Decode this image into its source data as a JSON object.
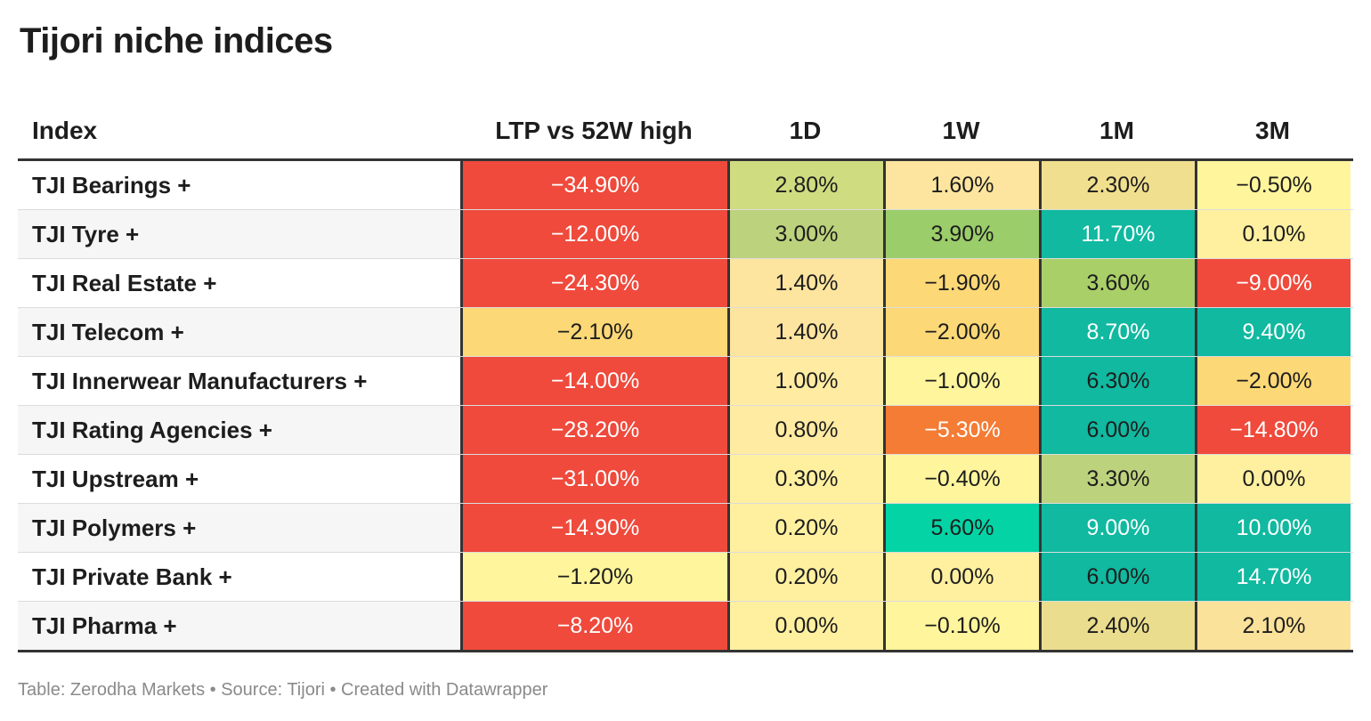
{
  "title": "Tijori niche indices",
  "footer": "Table: Zerodha Markets • Source: Tijori • Created with Datawrapper",
  "colors": {
    "strong_red": "#ef4a3c",
    "orange": "#f47c35",
    "amber": "#fdd876",
    "light_amber": "#fde59f",
    "pale_yellow": "#fff59c",
    "olive_light": "#d0dc80",
    "olive": "#bdd27c",
    "light_green": "#a9cf68",
    "teal": "#10b9a0",
    "green_teal": "#04d4a5"
  },
  "chart_data": {
    "type": "table",
    "columns": [
      "Index",
      "LTP vs 52W high",
      "1D",
      "1W",
      "1M",
      "3M"
    ],
    "rows": [
      {
        "name": "TJI Bearings +",
        "cells": [
          {
            "text": "−34.90%",
            "value": -34.9,
            "bg": "#ef4a3c",
            "fg": "#ffffff"
          },
          {
            "text": "2.80%",
            "value": 2.8,
            "bg": "#d0dc80",
            "fg": "#1d1d1d"
          },
          {
            "text": "1.60%",
            "value": 1.6,
            "bg": "#fde59f",
            "fg": "#1d1d1d"
          },
          {
            "text": "2.30%",
            "value": 2.3,
            "bg": "#f0df8e",
            "fg": "#1d1d1d"
          },
          {
            "text": "−0.50%",
            "value": -0.5,
            "bg": "#fff59c",
            "fg": "#1d1d1d"
          }
        ]
      },
      {
        "name": "TJI Tyre +",
        "cells": [
          {
            "text": "−12.00%",
            "value": -12.0,
            "bg": "#ef4a3c",
            "fg": "#ffffff"
          },
          {
            "text": "3.00%",
            "value": 3.0,
            "bg": "#bdd27c",
            "fg": "#1d1d1d"
          },
          {
            "text": "3.90%",
            "value": 3.9,
            "bg": "#9bcd6a",
            "fg": "#1d1d1d"
          },
          {
            "text": "11.70%",
            "value": 11.7,
            "bg": "#10b9a0",
            "fg": "#ffffff"
          },
          {
            "text": "0.10%",
            "value": 0.1,
            "bg": "#fff0a0",
            "fg": "#1d1d1d"
          }
        ]
      },
      {
        "name": "TJI Real Estate +",
        "cells": [
          {
            "text": "−24.30%",
            "value": -24.3,
            "bg": "#ef4a3c",
            "fg": "#ffffff"
          },
          {
            "text": "1.40%",
            "value": 1.4,
            "bg": "#fde59f",
            "fg": "#1d1d1d"
          },
          {
            "text": "−1.90%",
            "value": -1.9,
            "bg": "#fdd876",
            "fg": "#1d1d1d"
          },
          {
            "text": "3.60%",
            "value": 3.6,
            "bg": "#a9cf68",
            "fg": "#1d1d1d"
          },
          {
            "text": "−9.00%",
            "value": -9.0,
            "bg": "#ef4a3c",
            "fg": "#ffffff"
          }
        ]
      },
      {
        "name": "TJI Telecom +",
        "cells": [
          {
            "text": "−2.10%",
            "value": -2.1,
            "bg": "#fdd876",
            "fg": "#1d1d1d"
          },
          {
            "text": "1.40%",
            "value": 1.4,
            "bg": "#fde59f",
            "fg": "#1d1d1d"
          },
          {
            "text": "−2.00%",
            "value": -2.0,
            "bg": "#fdd876",
            "fg": "#1d1d1d"
          },
          {
            "text": "8.70%",
            "value": 8.7,
            "bg": "#10b9a0",
            "fg": "#ffffff"
          },
          {
            "text": "9.40%",
            "value": 9.4,
            "bg": "#10b9a0",
            "fg": "#ffffff"
          }
        ]
      },
      {
        "name": "TJI Innerwear Manufacturers +",
        "cells": [
          {
            "text": "−14.00%",
            "value": -14.0,
            "bg": "#ef4a3c",
            "fg": "#ffffff"
          },
          {
            "text": "1.00%",
            "value": 1.0,
            "bg": "#ffeba2",
            "fg": "#1d1d1d"
          },
          {
            "text": "−1.00%",
            "value": -1.0,
            "bg": "#fff59c",
            "fg": "#1d1d1d"
          },
          {
            "text": "6.30%",
            "value": 6.3,
            "bg": "#10b9a0",
            "fg": "#1d1d1d"
          },
          {
            "text": "−2.00%",
            "value": -2.0,
            "bg": "#fdd876",
            "fg": "#1d1d1d"
          }
        ]
      },
      {
        "name": "TJI Rating Agencies +",
        "cells": [
          {
            "text": "−28.20%",
            "value": -28.2,
            "bg": "#ef4a3c",
            "fg": "#ffffff"
          },
          {
            "text": "0.80%",
            "value": 0.8,
            "bg": "#ffeba2",
            "fg": "#1d1d1d"
          },
          {
            "text": "−5.30%",
            "value": -5.3,
            "bg": "#f47c35",
            "fg": "#ffffff"
          },
          {
            "text": "6.00%",
            "value": 6.0,
            "bg": "#10b9a0",
            "fg": "#1d1d1d"
          },
          {
            "text": "−14.80%",
            "value": -14.8,
            "bg": "#ef4a3c",
            "fg": "#ffffff"
          }
        ]
      },
      {
        "name": "TJI Upstream +",
        "cells": [
          {
            "text": "−31.00%",
            "value": -31.0,
            "bg": "#ef4a3c",
            "fg": "#ffffff"
          },
          {
            "text": "0.30%",
            "value": 0.3,
            "bg": "#fff0a0",
            "fg": "#1d1d1d"
          },
          {
            "text": "−0.40%",
            "value": -0.4,
            "bg": "#fff59c",
            "fg": "#1d1d1d"
          },
          {
            "text": "3.30%",
            "value": 3.3,
            "bg": "#bdd27c",
            "fg": "#1d1d1d"
          },
          {
            "text": "0.00%",
            "value": 0.0,
            "bg": "#fff0a0",
            "fg": "#1d1d1d"
          }
        ]
      },
      {
        "name": "TJI Polymers +",
        "cells": [
          {
            "text": "−14.90%",
            "value": -14.9,
            "bg": "#ef4a3c",
            "fg": "#ffffff"
          },
          {
            "text": "0.20%",
            "value": 0.2,
            "bg": "#fff0a0",
            "fg": "#1d1d1d"
          },
          {
            "text": "5.60%",
            "value": 5.6,
            "bg": "#04d4a5",
            "fg": "#1d1d1d"
          },
          {
            "text": "9.00%",
            "value": 9.0,
            "bg": "#10b9a0",
            "fg": "#ffffff"
          },
          {
            "text": "10.00%",
            "value": 10.0,
            "bg": "#10b9a0",
            "fg": "#ffffff"
          }
        ]
      },
      {
        "name": "TJI Private Bank +",
        "cells": [
          {
            "text": "−1.20%",
            "value": -1.2,
            "bg": "#fff59c",
            "fg": "#1d1d1d"
          },
          {
            "text": "0.20%",
            "value": 0.2,
            "bg": "#fff0a0",
            "fg": "#1d1d1d"
          },
          {
            "text": "0.00%",
            "value": 0.0,
            "bg": "#fff0a0",
            "fg": "#1d1d1d"
          },
          {
            "text": "6.00%",
            "value": 6.0,
            "bg": "#10b9a0",
            "fg": "#1d1d1d"
          },
          {
            "text": "14.70%",
            "value": 14.7,
            "bg": "#10b9a0",
            "fg": "#ffffff"
          }
        ]
      },
      {
        "name": "TJI Pharma +",
        "cells": [
          {
            "text": "−8.20%",
            "value": -8.2,
            "bg": "#ef4a3c",
            "fg": "#ffffff"
          },
          {
            "text": "0.00%",
            "value": 0.0,
            "bg": "#fff0a0",
            "fg": "#1d1d1d"
          },
          {
            "text": "−0.10%",
            "value": -0.1,
            "bg": "#fff59c",
            "fg": "#1d1d1d"
          },
          {
            "text": "2.40%",
            "value": 2.4,
            "bg": "#eadd8d",
            "fg": "#1d1d1d"
          },
          {
            "text": "2.10%",
            "value": 2.1,
            "bg": "#fbe29a",
            "fg": "#1d1d1d"
          }
        ]
      }
    ]
  }
}
